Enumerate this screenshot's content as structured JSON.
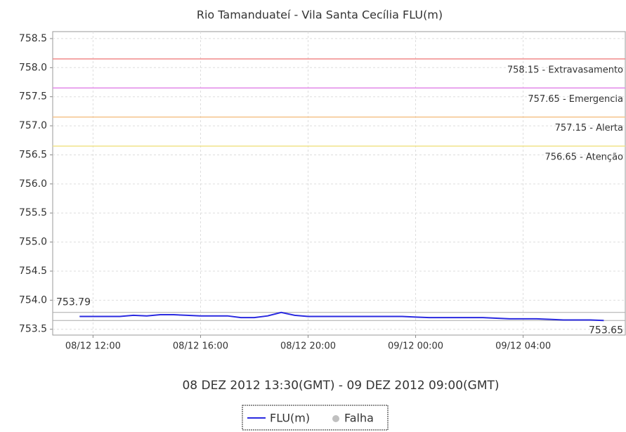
{
  "chart_data": {
    "type": "line",
    "title": "Rio Tamanduateí - Vila Santa Cecília FLU(m)",
    "xlabel": "08 DEZ 2012 13:30(GMT) - 09 DEZ 2012 09:00(GMT)",
    "x": [
      11.5,
      12,
      12.5,
      13,
      13.5,
      14,
      14.5,
      15,
      15.5,
      16,
      16.5,
      17,
      17.5,
      18,
      18.5,
      19,
      19.5,
      20,
      20.5,
      21,
      21.5,
      22,
      22.5,
      23,
      23.5,
      24,
      24.5,
      25,
      25.5,
      26,
      26.5,
      27,
      27.5,
      28,
      28.5,
      29,
      29.5,
      30,
      30.5,
      31
    ],
    "series": [
      {
        "name": "FLU(m)",
        "color": "#2a2ae0",
        "values": [
          753.72,
          753.72,
          753.72,
          753.72,
          753.74,
          753.73,
          753.75,
          753.75,
          753.74,
          753.73,
          753.73,
          753.73,
          753.7,
          753.7,
          753.73,
          753.79,
          753.74,
          753.72,
          753.72,
          753.72,
          753.72,
          753.72,
          753.72,
          753.72,
          753.72,
          753.71,
          753.7,
          753.7,
          753.7,
          753.7,
          753.7,
          753.69,
          753.68,
          753.68,
          753.68,
          753.67,
          753.66,
          753.66,
          753.66,
          753.65
        ]
      }
    ],
    "failure_legend": {
      "name": "Falha",
      "color": "#c0c0c0"
    },
    "xlim": [
      10.5,
      31.8
    ],
    "xticks": [
      {
        "value": 12,
        "label": "08/12 12:00"
      },
      {
        "value": 16,
        "label": "08/12 16:00"
      },
      {
        "value": 20,
        "label": "08/12 20:00"
      },
      {
        "value": 24,
        "label": "09/12 00:00"
      },
      {
        "value": 28,
        "label": "09/12 04:00"
      }
    ],
    "ylim": [
      753.4,
      758.62
    ],
    "yticks": [
      753.5,
      {
        "value": 754,
        "label": "754.0"
      },
      754.5,
      {
        "value": 755,
        "label": "755.0"
      },
      755.5,
      {
        "value": 756,
        "label": "756.0"
      },
      756.5,
      {
        "value": 757,
        "label": "757.0"
      },
      757.5,
      {
        "value": 758,
        "label": "758.0"
      },
      758.5
    ],
    "grid": true,
    "thresholds": [
      {
        "value": 758.15,
        "label": "758.15 - Extravasamento",
        "color": "#f08a8a"
      },
      {
        "value": 757.65,
        "label": "757.65 - Emergencia",
        "color": "#e38ae8"
      },
      {
        "value": 757.15,
        "label": "757.15 - Alerta",
        "color": "#f5c28a"
      },
      {
        "value": 756.65,
        "label": "756.65 - Atenção",
        "color": "#f0e48a"
      }
    ],
    "markers": [
      753.79,
      753.65
    ]
  }
}
